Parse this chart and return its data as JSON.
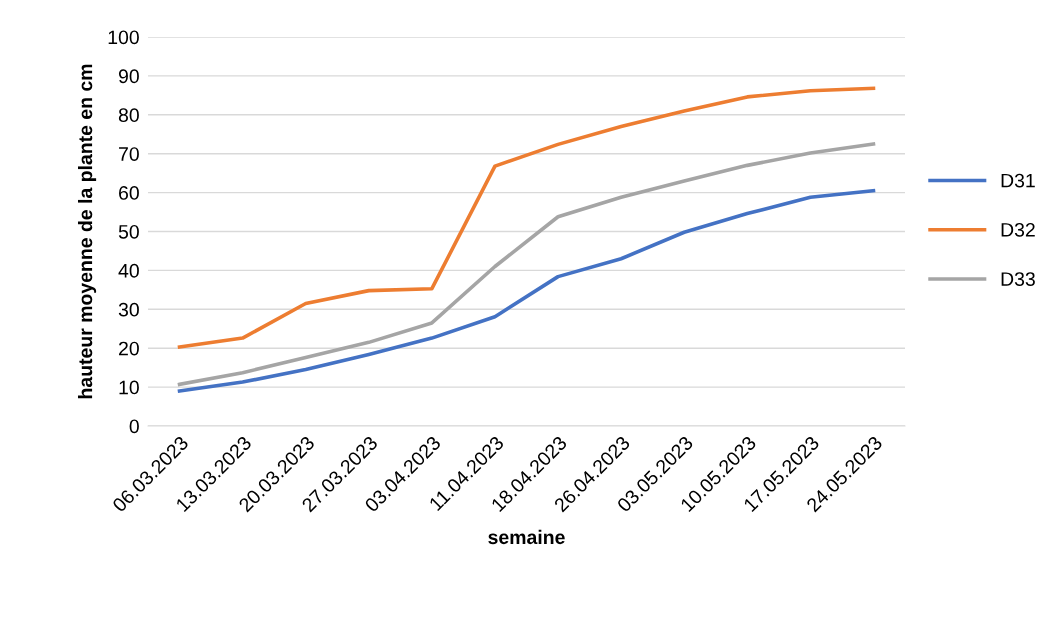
{
  "chart_data": {
    "type": "line",
    "xlabel": "semaine",
    "ylabel": "hauteur moyenne de la plante en cm",
    "categories": [
      "06.03.2023",
      "13.03.2023",
      "20.03.2023",
      "27.03.2023",
      "03.04.2023",
      "11.04.2023",
      "18.04.2023",
      "26.04.2023",
      "03.05.2023",
      "10.05.2023",
      "17.05.2023",
      "24.05.2023"
    ],
    "series": [
      {
        "name": "D31",
        "color": "#4472c4",
        "values": [
          9,
          11.3,
          14.5,
          18.4,
          22.6,
          28.1,
          38.4,
          43,
          49.8,
          54.6,
          58.8,
          60.5
        ]
      },
      {
        "name": "D32",
        "color": "#ed7d31",
        "values": [
          20.3,
          22.6,
          31.5,
          34.8,
          35.3,
          66.8,
          72.4,
          77,
          81,
          84.6,
          86.2,
          86.8
        ]
      },
      {
        "name": "D33",
        "color": "#a5a5a5",
        "values": [
          10.7,
          13.7,
          17.6,
          21.5,
          26.5,
          41,
          53.8,
          58.8,
          63,
          67,
          70.2,
          72.5
        ]
      }
    ],
    "ylim": [
      0,
      100
    ],
    "yticks": [
      0,
      10,
      20,
      30,
      40,
      50,
      60,
      70,
      80,
      90,
      100
    ],
    "grid": "y",
    "legend": "right",
    "marker": "none",
    "line_style": "solid"
  }
}
